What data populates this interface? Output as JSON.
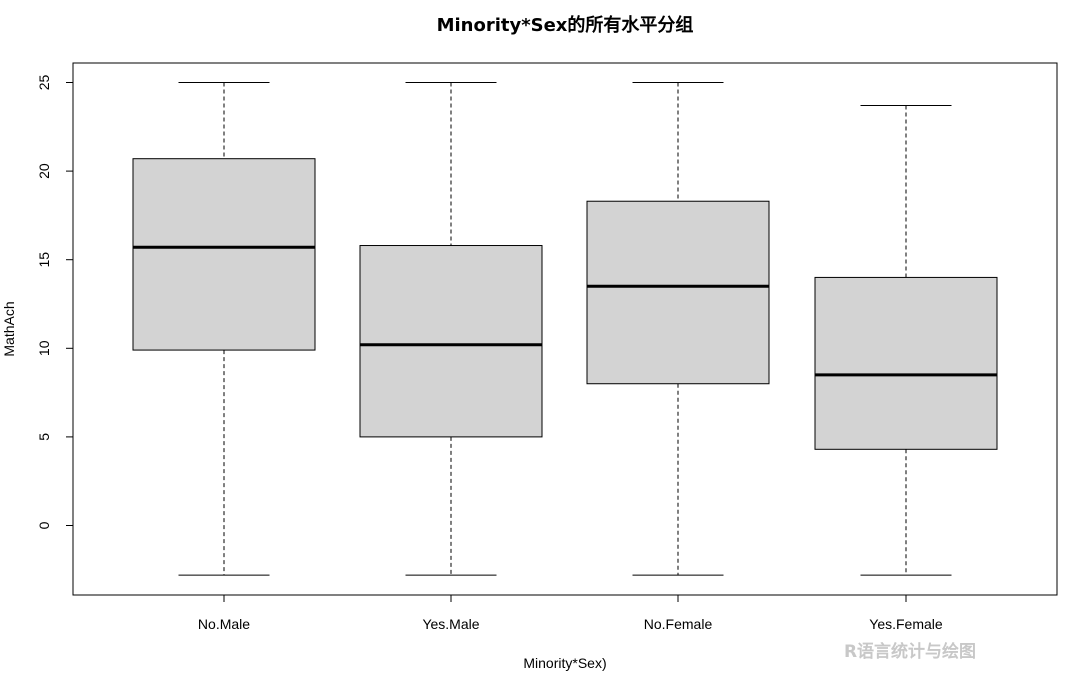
{
  "chart_data": {
    "type": "boxplot",
    "title": "Minority*Sex的所有水平分组",
    "xlabel": "Minority*Sex)",
    "ylabel": "MathAch",
    "ylim": [
      -4,
      26
    ],
    "yticks": [
      0,
      5,
      10,
      15,
      20,
      25
    ],
    "box_fill": "#d3d3d3",
    "categories": [
      "No.Male",
      "Yes.Male",
      "No.Female",
      "Yes.Female"
    ],
    "boxes": [
      {
        "category": "No.Male",
        "whisker_low": -2.8,
        "q1": 9.9,
        "median": 15.7,
        "q3": 20.7,
        "whisker_high": 25.0
      },
      {
        "category": "Yes.Male",
        "whisker_low": -2.8,
        "q1": 5.0,
        "median": 10.2,
        "q3": 15.8,
        "whisker_high": 25.0
      },
      {
        "category": "No.Female",
        "whisker_low": -2.8,
        "q1": 8.0,
        "median": 13.5,
        "q3": 18.3,
        "whisker_high": 25.0
      },
      {
        "category": "Yes.Female",
        "whisker_low": -2.8,
        "q1": 4.3,
        "median": 8.5,
        "q3": 14.0,
        "whisker_high": 23.7
      }
    ]
  },
  "watermark": "R语言统计与绘图"
}
